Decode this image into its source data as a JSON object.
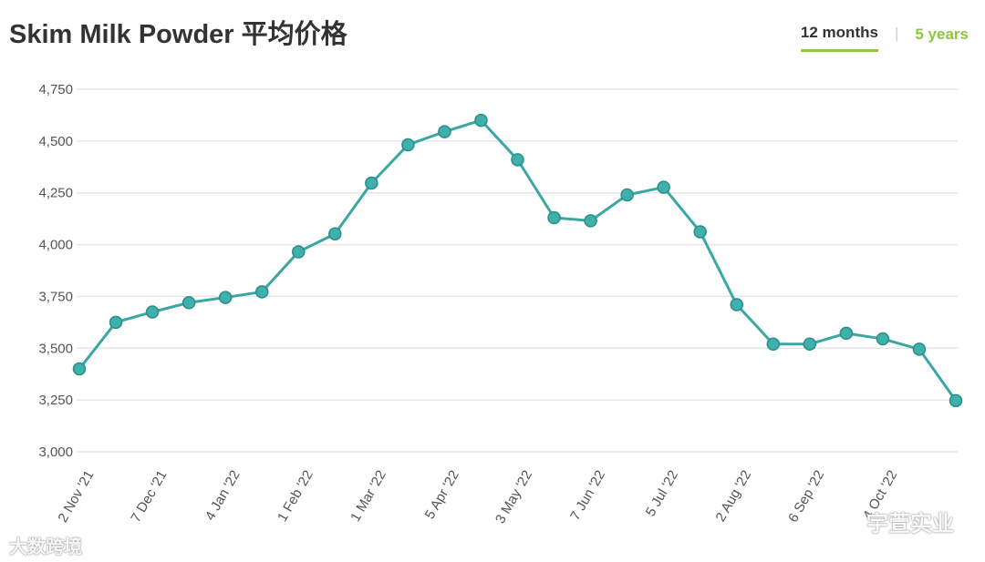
{
  "header": {
    "title": "Skim Milk Powder 平均价格",
    "tabs": [
      {
        "label": "12 months",
        "active": true
      },
      {
        "label": "5 years",
        "active": false
      }
    ]
  },
  "watermarks": {
    "left": "大数跨境",
    "right": "宇萱实业"
  },
  "colors": {
    "line": "#3aa7a3",
    "marker_fill": "#3fb0ac",
    "grid": "#e6e6e6",
    "axis_text": "#555555",
    "accent": "#8dc63f"
  },
  "chart_data": {
    "type": "line",
    "title": "Skim Milk Powder 平均价格",
    "xlabel": "",
    "ylabel": "",
    "ylim": [
      3000,
      4750
    ],
    "yticks": [
      3000,
      3250,
      3500,
      3750,
      4000,
      4250,
      4500,
      4750
    ],
    "ytick_labels": [
      "3,000",
      "3,250",
      "3,500",
      "3,750",
      "4,000",
      "4,250",
      "4,500",
      "4,750"
    ],
    "grid": true,
    "xtick_labels": [
      "2 Nov '21",
      "7 Dec '21",
      "4 Jan '22",
      "1 Feb '22",
      "1 Mar '22",
      "5 Apr '22",
      "3 May '22",
      "7 Jun '22",
      "5 Jul '22",
      "2 Aug '22",
      "6 Sep '22",
      "4 Oct '22"
    ],
    "xtick_indices": [
      0.4,
      2.4,
      4.4,
      6.4,
      8.4,
      10.4,
      12.4,
      14.4,
      16.4,
      18.4,
      20.4,
      22.4
    ],
    "series": [
      {
        "values": [
          3400,
          3625,
          3675,
          3720,
          3745,
          3772,
          3965,
          4052,
          4297,
          4482,
          4545,
          4600,
          4410,
          4130,
          4115,
          4240,
          4277,
          4062,
          3710,
          3520,
          3520,
          3572,
          3545,
          3495,
          3247
        ]
      }
    ]
  }
}
